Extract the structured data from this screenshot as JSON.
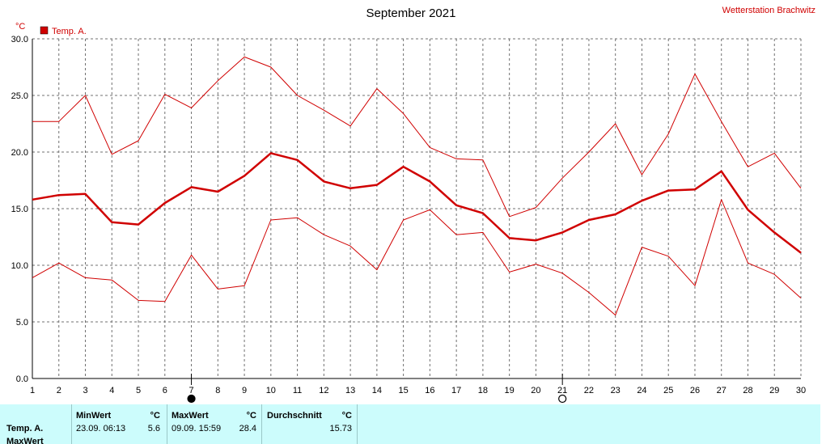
{
  "header": {
    "title": "September 2021",
    "station": "Wetterstation Brachwitz",
    "unit": "°C",
    "legend_label": "Temp. A.",
    "legend_color": "#d00000"
  },
  "chart_data": {
    "type": "line",
    "ylim": [
      0,
      30
    ],
    "yticks": [
      "0.0",
      "5.0",
      "10.0",
      "15.0",
      "20.0",
      "25.0",
      "30.0"
    ],
    "ytick_values": [
      0,
      5,
      10,
      15,
      20,
      25,
      30
    ],
    "x": [
      1,
      2,
      3,
      4,
      5,
      6,
      7,
      8,
      9,
      10,
      11,
      12,
      13,
      14,
      15,
      16,
      17,
      18,
      19,
      20,
      21,
      22,
      23,
      24,
      25,
      26,
      27,
      28,
      29,
      30
    ],
    "xticks": [
      "1",
      "2",
      "3",
      "4",
      "5",
      "6",
      "7",
      "8",
      "9",
      "10",
      "11",
      "12",
      "13",
      "14",
      "15",
      "16",
      "17",
      "18",
      "19",
      "20",
      "21",
      "22",
      "23",
      "24",
      "25",
      "26",
      "27",
      "28",
      "29",
      "30"
    ],
    "grid": true,
    "legend": "top-left",
    "series": [
      {
        "name": "Temp. A.",
        "role": "max",
        "color": "#d00000",
        "values": [
          22.7,
          22.7,
          25.0,
          19.8,
          21.0,
          25.1,
          23.9,
          26.3,
          28.4,
          27.5,
          25.0,
          23.7,
          22.3,
          25.6,
          23.4,
          20.4,
          19.4,
          19.3,
          14.3,
          15.1,
          17.7,
          20.0,
          22.5,
          18.0,
          21.6,
          26.9,
          22.7,
          18.7,
          19.9,
          16.8
        ]
      },
      {
        "name": "Temp. A.",
        "role": "avg",
        "color": "#d00000",
        "values": [
          15.8,
          16.2,
          16.3,
          13.8,
          13.6,
          15.5,
          16.9,
          16.5,
          17.9,
          19.9,
          19.3,
          17.4,
          16.8,
          17.1,
          18.7,
          17.4,
          15.3,
          14.6,
          12.4,
          12.2,
          12.9,
          14.0,
          14.5,
          15.7,
          16.6,
          16.7,
          18.3,
          14.9,
          12.9,
          11.1
        ]
      },
      {
        "name": "Temp. A.",
        "role": "min",
        "color": "#d00000",
        "values": [
          8.9,
          10.2,
          8.9,
          8.7,
          6.9,
          6.8,
          10.9,
          7.9,
          8.2,
          14.0,
          14.2,
          12.7,
          11.7,
          9.6,
          14.0,
          14.9,
          12.7,
          12.9,
          9.4,
          10.1,
          9.3,
          7.6,
          5.6,
          11.6,
          10.8,
          8.2,
          15.8,
          10.2,
          9.2,
          7.1
        ]
      }
    ],
    "moon_phases": [
      {
        "day": 7,
        "phase": "new-moon",
        "icon": "new-moon-icon"
      },
      {
        "day": 21,
        "phase": "full-moon",
        "icon": "full-moon-icon"
      }
    ]
  },
  "stats": {
    "row_label": "Temp. A.",
    "row_label_2": "MaxWert",
    "min": {
      "title": "MinWert",
      "unit": "°C",
      "datetime": "23.09.  06:13",
      "value": "5.6"
    },
    "max": {
      "title": "MaxWert",
      "unit": "°C",
      "datetime": "09.09.  15:59",
      "value": "28.4"
    },
    "avg": {
      "title": "Durchschnitt",
      "unit": "°C",
      "value": "15.73"
    }
  }
}
